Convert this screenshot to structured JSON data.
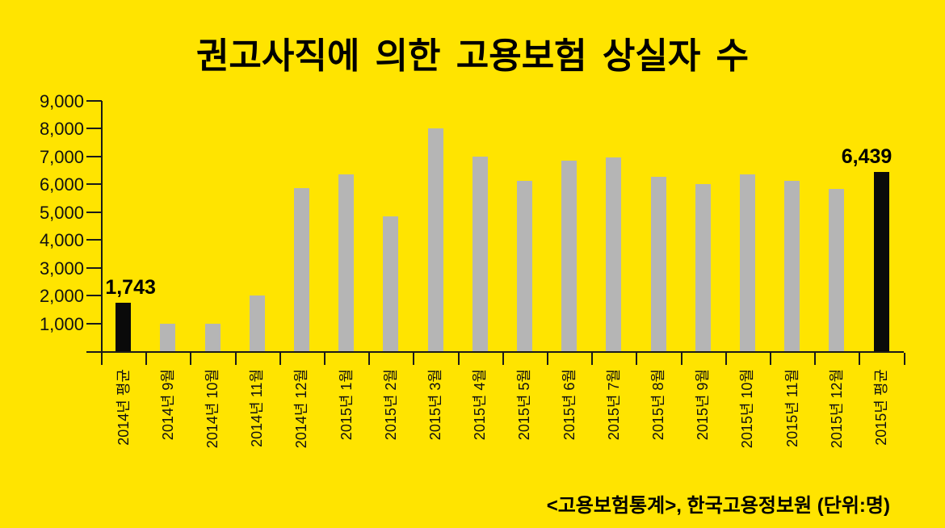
{
  "title": "권고사직에 의한 고용보험 상실자 수",
  "source_note": "<고용보험통계>, 한국고용정보원 (단위:명)",
  "colors": {
    "background": "#FFE400",
    "bar_default": "#B5B5B5",
    "bar_highlight": "#0A0A0A",
    "axis": "#1A1A1A"
  },
  "chart_data": {
    "type": "bar",
    "title": "권고사직에 의한 고용보험 상실자 수",
    "categories": [
      "2014년 평균",
      "2014년 9월",
      "2014년 10월",
      "2014년 11월",
      "2014년 12월",
      "2015년 1월",
      "2015년 2월",
      "2015년 3월",
      "2015년 4월",
      "2015년 5월",
      "2015년 6월",
      "2015년 7월",
      "2015년 8월",
      "2015년 9월",
      "2015년 10월",
      "2015년 11월",
      "2015년 12월",
      "2015년 평균"
    ],
    "values": [
      1743,
      1000,
      1000,
      2000,
      5870,
      6370,
      4860,
      8000,
      6990,
      6120,
      6850,
      6970,
      6270,
      6000,
      6370,
      6120,
      5850,
      6439
    ],
    "highlighted_indices": [
      0,
      17
    ],
    "data_labels": {
      "0": "1,743",
      "17": "6,439"
    },
    "ytick_labels": [
      "1,000",
      "2,000",
      "3,000",
      "4,000",
      "5,000",
      "6,000",
      "7,000",
      "8,000",
      "9,000"
    ],
    "ylim": [
      0,
      9000
    ],
    "grid": false,
    "legend": false,
    "unit": "명"
  }
}
